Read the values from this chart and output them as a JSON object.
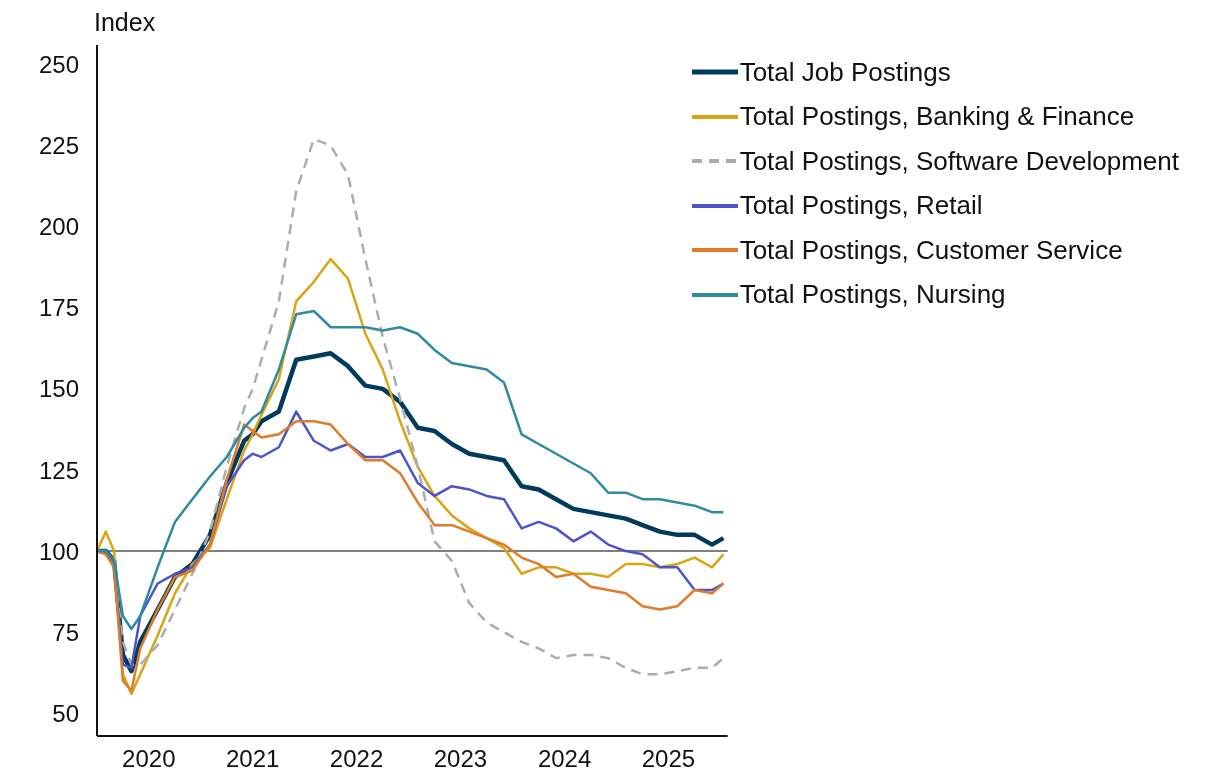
{
  "chart_data": {
    "type": "line",
    "ylabel": "Index",
    "x": [
      "2020-01-01",
      "2020-02-01",
      "2020-03-01",
      "2020-04-01",
      "2020-05-01",
      "2020-06-01",
      "2020-08-01",
      "2020-10-01",
      "2020-12-01",
      "2021-02-01",
      "2021-04-01",
      "2021-06-01",
      "2021-07-01",
      "2021-08-01",
      "2021-10-01",
      "2021-12-01",
      "2022-02-01",
      "2022-04-01",
      "2022-06-01",
      "2022-08-01",
      "2022-10-01",
      "2022-12-01",
      "2023-02-01",
      "2023-04-01",
      "2023-06-01",
      "2023-08-01",
      "2023-10-01",
      "2023-12-01",
      "2024-02-01",
      "2024-04-01",
      "2024-06-01",
      "2024-08-01",
      "2024-10-01",
      "2024-12-01",
      "2025-02-01",
      "2025-04-01",
      "2025-06-01",
      "2025-08-01",
      "2025-10-01",
      "2025-12-01",
      "2026-01-10"
    ],
    "series": [
      {
        "name": "Total Job Postings",
        "color": "#003a5c",
        "values": [
          100,
          100,
          97,
          68,
          63,
          72,
          82,
          92,
          96,
          105,
          121,
          134,
          136,
          140,
          143,
          159,
          160,
          161,
          157,
          151,
          150,
          146,
          138,
          137,
          133,
          130,
          129,
          128,
          120,
          119,
          116,
          113,
          112,
          111,
          110,
          108,
          106,
          105,
          105,
          102,
          104
        ]
      },
      {
        "name": "Total Postings, Banking & Finance",
        "color": "#d9a514",
        "values": [
          100,
          106,
          100,
          62,
          56,
          62,
          74,
          87,
          96,
          101,
          116,
          131,
          136,
          142,
          153,
          177,
          183,
          190,
          184,
          167,
          156,
          140,
          126,
          117,
          111,
          107,
          104,
          101,
          93,
          95,
          95,
          93,
          93,
          92,
          96,
          96,
          95,
          96,
          98,
          95,
          99
        ]
      },
      {
        "name": "Total Postings, Software Development",
        "color": "#a7aeb2",
        "line_style": "dashed",
        "values": [
          100,
          100,
          95,
          72,
          65,
          65,
          71,
          82,
          93,
          106,
          126,
          144,
          150,
          159,
          177,
          211,
          227,
          225,
          216,
          190,
          166,
          147,
          126,
          103,
          97,
          84,
          78,
          75,
          72,
          70,
          67,
          68,
          68,
          67,
          64,
          62,
          62,
          63,
          64,
          64,
          67
        ]
      },
      {
        "name": "Total Postings, Retail",
        "color": "#4b55c9",
        "values": [
          100,
          100,
          95,
          65,
          64,
          80,
          90,
          93,
          95,
          102,
          120,
          128,
          130,
          129,
          132,
          143,
          134,
          131,
          133,
          129,
          129,
          131,
          121,
          117,
          120,
          119,
          117,
          116,
          107,
          109,
          107,
          103,
          106,
          102,
          100,
          99,
          95,
          95,
          88,
          88,
          90
        ]
      },
      {
        "name": "Total Postings, Customer Service",
        "color": "#e07b2a",
        "values": [
          100,
          99,
          95,
          60,
          57,
          70,
          82,
          92,
          94,
          102,
          122,
          139,
          137,
          135,
          136,
          140,
          140,
          139,
          133,
          128,
          128,
          124,
          115,
          108,
          108,
          106,
          104,
          102,
          98,
          96,
          92,
          93,
          89,
          88,
          87,
          83,
          82,
          83,
          88,
          87,
          90
        ]
      },
      {
        "name": "Total Postings, Nursing",
        "color": "#2e8ba0",
        "values": [
          100,
          100,
          97,
          80,
          76,
          80,
          95,
          109,
          116,
          123,
          129,
          138,
          141,
          143,
          156,
          173,
          174,
          169,
          169,
          169,
          168,
          169,
          167,
          162,
          158,
          157,
          156,
          152,
          136,
          133,
          130,
          127,
          124,
          118,
          118,
          116,
          116,
          115,
          114,
          112,
          112
        ]
      }
    ],
    "ylim": [
      43,
      256
    ],
    "yticks": [
      50,
      75,
      100,
      125,
      150,
      175,
      200,
      225,
      250
    ],
    "xlim": [
      "2020-01-01",
      "2026-01-25"
    ],
    "xticks": [
      {
        "value": "2020-07-01",
        "label": "2020"
      },
      {
        "value": "2021-07-01",
        "label": "2021"
      },
      {
        "value": "2022-07-01",
        "label": "2022"
      },
      {
        "value": "2023-07-01",
        "label": "2023"
      },
      {
        "value": "2024-07-01",
        "label": "2024"
      },
      {
        "value": "2025-07-01",
        "label": "2025"
      }
    ],
    "ref_lines": [
      {
        "axis": "y",
        "value": 100,
        "color": "#808080"
      }
    ],
    "grid": false,
    "legend": "top right",
    "marker": "none",
    "line_style": "solid"
  }
}
